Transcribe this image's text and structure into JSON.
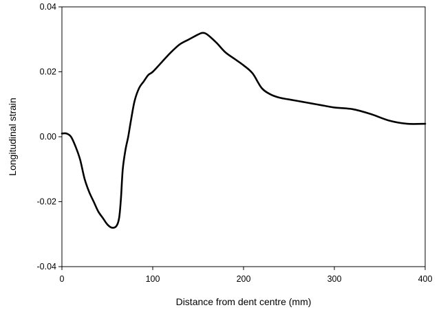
{
  "chart_data": {
    "type": "line",
    "title": "",
    "xlabel": "Distance from dent centre (mm)",
    "ylabel": "Longitudinal strain",
    "xlim": [
      0,
      400
    ],
    "ylim": [
      -0.04,
      0.04
    ],
    "x_ticks": [
      0,
      100,
      200,
      300,
      400
    ],
    "x_tick_labels": [
      "0",
      "100",
      "200",
      "300",
      "400"
    ],
    "y_ticks": [
      -0.04,
      -0.02,
      0.0,
      0.02,
      0.04
    ],
    "y_tick_labels": [
      "-0.04",
      "-0.02",
      "0.00",
      "0.02",
      "0.04"
    ],
    "grid": false,
    "legend": "none",
    "line_color": "#000000",
    "series": [
      {
        "x": [
          0,
          5,
          10,
          15,
          20,
          25,
          30,
          35,
          40,
          45,
          50,
          55,
          60,
          63,
          65,
          67,
          70,
          73,
          76,
          80,
          85,
          90,
          95,
          100,
          110,
          120,
          130,
          140,
          150,
          155,
          160,
          170,
          180,
          190,
          200,
          210,
          220,
          230,
          240,
          250,
          260,
          270,
          280,
          290,
          300,
          320,
          340,
          360,
          380,
          400
        ],
        "y": [
          0.001,
          0.001,
          0.0,
          -0.003,
          -0.007,
          -0.013,
          -0.017,
          -0.02,
          -0.023,
          -0.025,
          -0.027,
          -0.028,
          -0.0275,
          -0.025,
          -0.019,
          -0.01,
          -0.004,
          0.0,
          0.005,
          0.011,
          0.015,
          0.017,
          0.019,
          0.02,
          0.023,
          0.026,
          0.0285,
          0.03,
          0.0315,
          0.032,
          0.0315,
          0.029,
          0.026,
          0.024,
          0.022,
          0.0195,
          0.015,
          0.013,
          0.012,
          0.0115,
          0.011,
          0.0105,
          0.01,
          0.0095,
          0.009,
          0.0085,
          0.007,
          0.005,
          0.004,
          0.004
        ]
      }
    ]
  }
}
